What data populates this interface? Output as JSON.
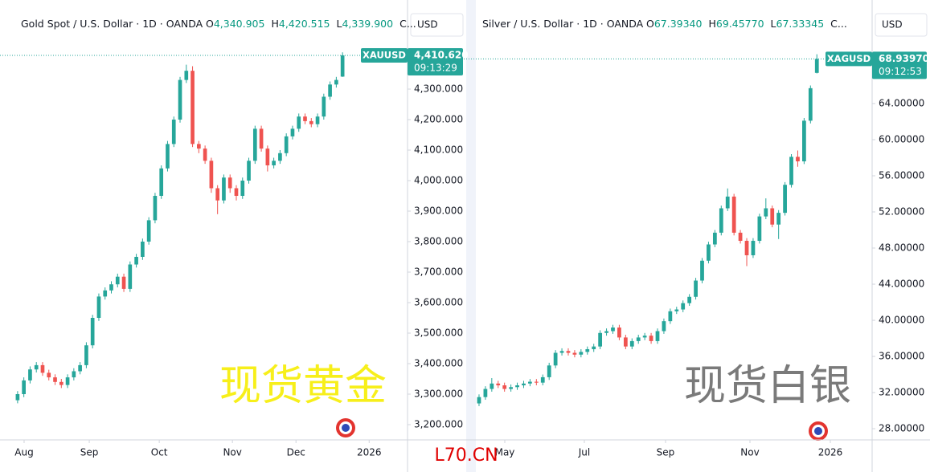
{
  "chart_data": [
    {
      "type": "candlestick",
      "title": "Gold Spot / U.S. Dollar · 1D · OANDA",
      "ohlc_header": [
        {
          "key": "O",
          "text": "4,340.905"
        },
        {
          "key": "H",
          "text": "4,420.515"
        },
        {
          "key": "L",
          "text": "4,339.900"
        },
        {
          "key": "C..."
        }
      ],
      "currency": "USD",
      "symbol": "XAUUSD",
      "last_price_label": "4,410.620",
      "countdown": "09:13:29",
      "watermark": "现货黄金",
      "watermark_color": "#f7ef1a",
      "up_color": "#26a69a",
      "down_color": "#ef5350",
      "open": [
        3280,
        3300,
        3345,
        3381,
        3395,
        3370,
        3355,
        3340,
        3330,
        3355,
        3375,
        3395,
        3460,
        3550,
        3620,
        3640,
        3660,
        3685,
        3645,
        3725,
        3750,
        3800,
        3870,
        3950,
        4040,
        4120,
        4200,
        4330,
        4360,
        4120,
        4105,
        4065,
        3975,
        3935,
        4010,
        3975,
        3950,
        4000,
        4065,
        4170,
        4105,
        4050,
        4065,
        4090,
        4145,
        4170,
        4210,
        4195,
        4185,
        4210,
        4275,
        4315,
        4340.905
      ],
      "high": [
        3310,
        3355,
        3391,
        3405,
        3405,
        3380,
        3365,
        3350,
        3365,
        3385,
        3405,
        3470,
        3560,
        3630,
        3650,
        3670,
        3695,
        3695,
        3735,
        3760,
        3810,
        3880,
        3960,
        4050,
        4130,
        4210,
        4340,
        4380,
        4375,
        4130,
        4115,
        4075,
        3985,
        4020,
        4020,
        3985,
        4010,
        4075,
        4180,
        4180,
        4115,
        4075,
        4100,
        4155,
        4180,
        4220,
        4220,
        4205,
        4220,
        4285,
        4325,
        4340,
        4420.515
      ],
      "low": [
        3270,
        3290,
        3335,
        3371,
        3360,
        3345,
        3330,
        3320,
        3320,
        3345,
        3365,
        3385,
        3450,
        3540,
        3610,
        3630,
        3650,
        3635,
        3635,
        3715,
        3740,
        3790,
        3860,
        3940,
        4030,
        4110,
        4190,
        4320,
        4110,
        4090,
        4055,
        3960,
        3890,
        3925,
        3960,
        3935,
        3940,
        3990,
        4055,
        4095,
        4030,
        4040,
        4055,
        4080,
        4135,
        4160,
        4185,
        4175,
        4175,
        4200,
        4265,
        4305,
        4339.9
      ],
      "close": [
        3300,
        3345,
        3381,
        3395,
        3370,
        3355,
        3340,
        3330,
        3355,
        3375,
        3395,
        3460,
        3550,
        3620,
        3640,
        3660,
        3685,
        3645,
        3725,
        3750,
        3800,
        3870,
        3950,
        4040,
        4120,
        4200,
        4330,
        4360,
        4120,
        4105,
        4065,
        3975,
        3935,
        4010,
        3975,
        3950,
        4000,
        4065,
        4170,
        4105,
        4050,
        4065,
        4090,
        4145,
        4170,
        4210,
        4195,
        4185,
        4210,
        4275,
        4315,
        4330,
        4410.62
      ],
      "xlim": [
        -0.5,
        62.4
      ],
      "xticks": [
        {
          "value": 1.04,
          "label": "Aug"
        },
        {
          "value": 11.47,
          "label": "Sep"
        },
        {
          "value": 22.67,
          "label": "Oct"
        },
        {
          "value": 34.38,
          "label": "Nov"
        },
        {
          "value": 44.55,
          "label": "Dec"
        },
        {
          "value": 56.26,
          "label": "2026"
        }
      ],
      "ylim": [
        3150,
        4552.6
      ],
      "yticks": [
        {
          "value": 3200,
          "label": "3,200.000"
        },
        {
          "value": 3300,
          "label": "3,300.000"
        },
        {
          "value": 3400,
          "label": "3,400.000"
        },
        {
          "value": 3500,
          "label": "3,500.000"
        },
        {
          "value": 3600,
          "label": "3,600.000"
        },
        {
          "value": 3700,
          "label": "3,700.000"
        },
        {
          "value": 3800,
          "label": "3,800.000"
        },
        {
          "value": 3900,
          "label": "3,900.000"
        },
        {
          "value": 4000,
          "label": "4,000.000"
        },
        {
          "value": 4100,
          "label": "4,100.000"
        },
        {
          "value": 4200,
          "label": "4,200.000"
        },
        {
          "value": 4300,
          "label": "4,300.000"
        }
      ]
    },
    {
      "type": "candlestick",
      "title": "Silver / U.S. Dollar · 1D · OANDA",
      "ohlc_header": [
        {
          "key": "O",
          "text": "67.39340"
        },
        {
          "key": "H",
          "text": "69.45770"
        },
        {
          "key": "L",
          "text": "67.33345"
        },
        {
          "key": "C..."
        }
      ],
      "currency": "USD",
      "symbol": "XAGUSD",
      "last_price_label": "68.93970",
      "countdown": "09:12:53",
      "watermark": "现货白银",
      "watermark_color": "#7a7a7a",
      "up_color": "#26a69a",
      "down_color": "#ef5350",
      "open": [
        30.8,
        31.5,
        32.4,
        33.0,
        32.8,
        32.4,
        32.6,
        32.8,
        33.0,
        33.2,
        33.1,
        33.7,
        35.0,
        36.4,
        36.6,
        36.4,
        36.2,
        36.5,
        36.8,
        37.1,
        38.6,
        38.8,
        39.2,
        38.1,
        37.1,
        37.7,
        38.1,
        38.3,
        37.7,
        38.8,
        39.9,
        41.0,
        41.2,
        41.9,
        42.6,
        44.4,
        46.6,
        48.4,
        49.7,
        52.4,
        53.7,
        49.7,
        48.8,
        47.2,
        48.8,
        51.5,
        52.4,
        50.6,
        51.9,
        55.0,
        58.1,
        57.6,
        62.1,
        67.3934
      ],
      "high": [
        31.8,
        32.7,
        33.6,
        33.3,
        33.1,
        32.9,
        33.1,
        33.3,
        33.5,
        33.5,
        34.0,
        35.3,
        36.7,
        36.9,
        36.9,
        36.7,
        36.8,
        37.1,
        37.4,
        38.9,
        39.1,
        39.5,
        39.5,
        38.4,
        38.0,
        38.4,
        38.6,
        38.6,
        39.1,
        40.2,
        41.3,
        41.5,
        42.2,
        42.9,
        44.7,
        46.9,
        48.7,
        50.0,
        52.7,
        54.6,
        54.0,
        50.0,
        49.1,
        49.1,
        51.8,
        53.5,
        52.7,
        52.2,
        55.3,
        58.4,
        58.8,
        62.4,
        66.0,
        69.4577
      ],
      "low": [
        30.5,
        31.2,
        32.1,
        32.5,
        32.1,
        32.1,
        32.3,
        32.5,
        32.7,
        32.8,
        32.8,
        33.4,
        34.7,
        36.1,
        36.1,
        35.9,
        35.9,
        36.2,
        36.5,
        36.8,
        38.3,
        38.5,
        37.8,
        36.8,
        36.8,
        37.4,
        37.8,
        37.4,
        37.4,
        38.5,
        39.6,
        40.7,
        40.9,
        41.6,
        42.3,
        44.1,
        46.3,
        48.1,
        49.4,
        52.1,
        49.4,
        48.5,
        46.0,
        46.9,
        48.5,
        51.2,
        50.3,
        49.0,
        51.6,
        54.7,
        57.0,
        57.3,
        61.8,
        67.33345
      ],
      "close": [
        31.5,
        32.4,
        33.0,
        32.8,
        32.4,
        32.6,
        32.8,
        33.0,
        33.2,
        33.1,
        33.7,
        35.0,
        36.4,
        36.6,
        36.4,
        36.2,
        36.5,
        36.8,
        37.1,
        38.6,
        38.8,
        39.2,
        38.1,
        37.1,
        37.7,
        38.1,
        38.3,
        37.7,
        38.8,
        39.9,
        41.0,
        41.2,
        41.9,
        42.6,
        44.4,
        46.6,
        48.4,
        49.7,
        52.4,
        53.7,
        49.7,
        48.8,
        47.2,
        48.8,
        51.5,
        52.4,
        50.6,
        51.9,
        55.0,
        58.1,
        57.6,
        62.1,
        65.7,
        68.9397
      ],
      "xlim": [
        -0.5,
        61.67
      ],
      "xticks": [
        {
          "value": 4.04,
          "label": "May"
        },
        {
          "value": 16.52,
          "label": "Jul"
        },
        {
          "value": 29.26,
          "label": "Sep"
        },
        {
          "value": 42.5,
          "label": "Nov"
        },
        {
          "value": 55.11,
          "label": "2026"
        }
      ],
      "ylim": [
        26.76,
        74.13
      ],
      "yticks": [
        {
          "value": 28,
          "label": "28.00000"
        },
        {
          "value": 32,
          "label": "32.00000"
        },
        {
          "value": 36,
          "label": "36.00000"
        },
        {
          "value": 40,
          "label": "40.00000"
        },
        {
          "value": 44,
          "label": "44.00000"
        },
        {
          "value": 48,
          "label": "48.00000"
        },
        {
          "value": 52,
          "label": "52.00000"
        },
        {
          "value": 56,
          "label": "56.00000"
        },
        {
          "value": 60,
          "label": "60.00000"
        },
        {
          "value": 64,
          "label": "64.00000"
        }
      ]
    }
  ],
  "footer": "L70.CN"
}
